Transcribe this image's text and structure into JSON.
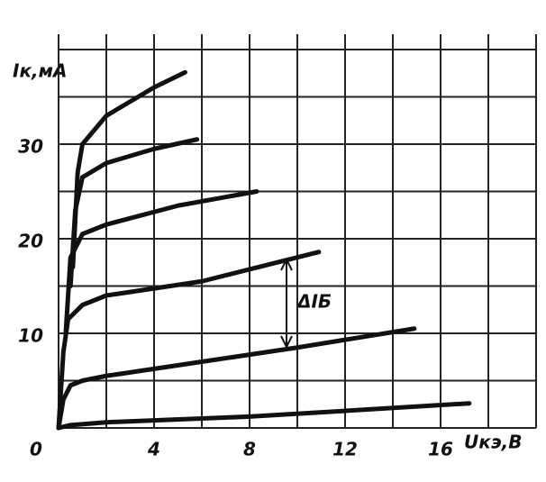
{
  "chart_data": {
    "type": "line",
    "xlabel": "Uкэ,В",
    "ylabel": "Iк,мА",
    "annotation": "ΔIБ",
    "xlim": [
      0,
      20
    ],
    "ylim": [
      0,
      40
    ],
    "xticks": [
      0,
      4,
      8,
      12,
      16
    ],
    "yticks": [
      10,
      20,
      30
    ],
    "xgrid": [
      0,
      2,
      4,
      6,
      8,
      10,
      12,
      14,
      16,
      18,
      20
    ],
    "ygrid": [
      0,
      5,
      10,
      15,
      20,
      25,
      30,
      35,
      40
    ],
    "grid": true,
    "color": "#111",
    "series": [
      {
        "color": "#111",
        "x": [
          0,
          0.5,
          2,
          8,
          17.2
        ],
        "values": [
          0,
          0.3,
          0.6,
          1.2,
          2.6
        ]
      },
      {
        "color": "#111",
        "x": [
          0,
          0.2,
          0.5,
          1,
          2,
          6,
          10,
          14.9
        ],
        "values": [
          0,
          3,
          4.5,
          5,
          5.5,
          7,
          8.5,
          10.5
        ]
      },
      {
        "color": "#111",
        "x": [
          0,
          0.2,
          0.4,
          1,
          2,
          6,
          10.9
        ],
        "values": [
          0,
          8,
          11.5,
          13,
          14,
          15.5,
          18.6
        ]
      },
      {
        "color": "#111",
        "x": [
          0.3,
          0.5,
          1,
          2,
          5,
          8.3
        ],
        "values": [
          10,
          18,
          20.5,
          21.5,
          23.5,
          25
        ]
      },
      {
        "color": "#111",
        "x": [
          0.5,
          0.7,
          1,
          2,
          4,
          5.8
        ],
        "values": [
          15,
          23,
          26.5,
          28,
          29.5,
          30.5
        ]
      },
      {
        "color": "#111",
        "x": [
          0.6,
          0.8,
          1,
          2,
          4,
          5.3
        ],
        "values": [
          17,
          27,
          30,
          33,
          36,
          37.6
        ]
      }
    ]
  }
}
